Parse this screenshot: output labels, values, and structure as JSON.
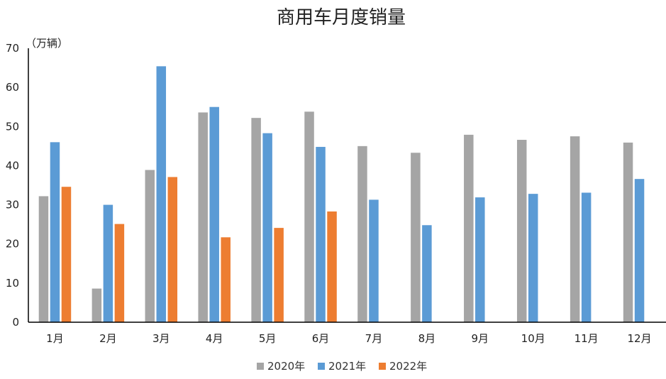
{
  "chart_data": {
    "type": "bar",
    "title": "商用车月度销量",
    "y_unit_label": "（万辆）",
    "categories": [
      "1月",
      "2月",
      "3月",
      "4月",
      "5月",
      "6月",
      "7月",
      "8月",
      "9月",
      "10月",
      "11月",
      "12月"
    ],
    "ylim": [
      0,
      70
    ],
    "yticks": [
      0,
      10,
      20,
      30,
      40,
      50,
      60,
      70
    ],
    "grid": false,
    "legend_position": "bottom",
    "series": [
      {
        "name": "2020年",
        "color": "#A5A5A5",
        "values": [
          32.2,
          8.6,
          38.9,
          53.6,
          52.2,
          53.8,
          45.0,
          43.3,
          47.9,
          46.6,
          47.5,
          45.9
        ]
      },
      {
        "name": "2021年",
        "color": "#5B9BD5",
        "values": [
          46.0,
          30.0,
          65.4,
          55.0,
          48.3,
          44.8,
          31.3,
          24.8,
          31.9,
          32.8,
          33.1,
          36.6
        ]
      },
      {
        "name": "2022年",
        "color": "#ED7D31",
        "values": [
          34.6,
          25.1,
          37.1,
          21.7,
          24.1,
          28.3,
          null,
          null,
          null,
          null,
          null,
          null
        ]
      }
    ]
  }
}
